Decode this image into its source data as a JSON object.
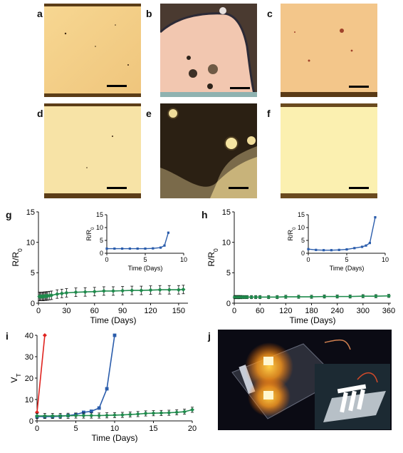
{
  "panels": {
    "a": "a",
    "b": "b",
    "c": "c",
    "d": "d",
    "e": "e",
    "f": "f",
    "g": "g",
    "h": "h",
    "i": "i",
    "j": "j"
  },
  "colors": {
    "blue": "#2a5cab",
    "green": "#1f8a4c",
    "red": "#e0231f",
    "gold": "#f1cd8a",
    "border_dark": "#6b4a1a"
  },
  "chart_data": [
    {
      "id": "g-main",
      "type": "line",
      "ylabel": "R/R0",
      "xlabel": "Time (Days)",
      "xlim": [
        0,
        160
      ],
      "ylim": [
        0,
        15
      ],
      "xticks": [
        "0",
        "30",
        "60",
        "90",
        "120",
        "150"
      ],
      "yticks": [
        "0",
        "5",
        "10",
        "15"
      ],
      "series": [
        {
          "color": "#1f8a4c",
          "x": [
            1,
            2,
            3,
            4,
            5,
            6,
            7,
            8,
            9,
            10,
            12,
            14,
            20,
            25,
            30,
            40,
            50,
            60,
            70,
            80,
            90,
            100,
            110,
            120,
            130,
            140,
            150,
            155
          ],
          "y": [
            1.1,
            1.1,
            1.1,
            1.1,
            1.1,
            1.15,
            1.15,
            1.15,
            1.2,
            1.2,
            1.25,
            1.3,
            1.5,
            1.6,
            1.7,
            1.8,
            1.85,
            1.9,
            2.0,
            2.0,
            2.05,
            2.1,
            2.1,
            2.15,
            2.2,
            2.2,
            2.2,
            2.25
          ],
          "err": 0.7
        }
      ]
    },
    {
      "id": "g-inset",
      "type": "line",
      "ylabel": "R/R0",
      "xlabel": "Time (Days)",
      "xlim": [
        0,
        10
      ],
      "ylim": [
        0,
        15
      ],
      "xticks": [
        "0",
        "5",
        "10"
      ],
      "yticks": [
        "0",
        "5",
        "10",
        "15"
      ],
      "series": [
        {
          "color": "#2a5cab",
          "x": [
            0,
            1,
            2,
            3,
            4,
            5,
            6,
            7,
            7.5,
            8
          ],
          "y": [
            1.8,
            1.8,
            1.8,
            1.8,
            1.8,
            1.8,
            1.9,
            2.2,
            3.0,
            8.0
          ]
        }
      ]
    },
    {
      "id": "h-main",
      "type": "line",
      "ylabel": "R/R0",
      "xlabel": "Time (Days)",
      "xlim": [
        0,
        365
      ],
      "ylim": [
        0,
        15
      ],
      "xticks": [
        "0",
        "60",
        "120",
        "180",
        "240",
        "300",
        "360"
      ],
      "yticks": [
        "0",
        "5",
        "10",
        "15"
      ],
      "series": [
        {
          "color": "#1f8a4c",
          "x": [
            1,
            3,
            5,
            7,
            9,
            11,
            13,
            15,
            17,
            20,
            25,
            30,
            40,
            50,
            60,
            80,
            100,
            120,
            150,
            180,
            210,
            240,
            270,
            300,
            330,
            360
          ],
          "y": [
            1.0,
            1.0,
            1.0,
            1.0,
            1.0,
            1.0,
            1.0,
            1.0,
            1.0,
            1.0,
            1.0,
            1.0,
            1.0,
            1.0,
            1.0,
            1.0,
            1.0,
            1.05,
            1.05,
            1.05,
            1.1,
            1.1,
            1.1,
            1.15,
            1.15,
            1.2
          ],
          "err": 0.25
        }
      ]
    },
    {
      "id": "h-inset",
      "type": "line",
      "ylabel": "R/R0",
      "xlabel": "Time (Days)",
      "xlim": [
        0,
        10
      ],
      "ylim": [
        0,
        15
      ],
      "xticks": [
        "0",
        "5",
        "10"
      ],
      "yticks": [
        "0",
        "5",
        "10",
        "15"
      ],
      "series": [
        {
          "color": "#2a5cab",
          "x": [
            0,
            1,
            2,
            3,
            4,
            5,
            6,
            7,
            7.5,
            8,
            8.7
          ],
          "y": [
            1.6,
            1.3,
            1.2,
            1.2,
            1.3,
            1.5,
            2.0,
            2.5,
            3.0,
            4.0,
            14.0
          ]
        }
      ]
    },
    {
      "id": "i-main",
      "type": "line",
      "ylabel": "VT",
      "xlabel": "Time (Days)",
      "xlim": [
        0,
        20
      ],
      "ylim": [
        0,
        40
      ],
      "xticks": [
        "0",
        "5",
        "10",
        "15",
        "20"
      ],
      "yticks": [
        "0",
        "10",
        "20",
        "30",
        "40"
      ],
      "series": [
        {
          "color": "#e0231f",
          "x": [
            0,
            1
          ],
          "y": [
            4,
            40
          ]
        },
        {
          "color": "#2a5cab",
          "x": [
            0,
            1,
            2,
            3,
            4,
            5,
            6,
            7,
            8,
            9,
            10
          ],
          "y": [
            2,
            2,
            2,
            2.2,
            2.5,
            3,
            4,
            4.5,
            6,
            15,
            40
          ]
        },
        {
          "color": "#1f8a4c",
          "x": [
            0,
            1,
            2,
            3,
            4,
            5,
            6,
            7,
            8,
            9,
            10,
            11,
            12,
            13,
            14,
            15,
            16,
            17,
            18,
            19,
            20
          ],
          "y": [
            2.3,
            2.3,
            2.3,
            2.3,
            2.4,
            2.5,
            2.5,
            2.5,
            2.5,
            2.6,
            2.7,
            2.8,
            3.0,
            3.2,
            3.5,
            3.6,
            3.7,
            3.8,
            4.0,
            4.3,
            5.2
          ],
          "err": 1.2
        }
      ]
    }
  ]
}
